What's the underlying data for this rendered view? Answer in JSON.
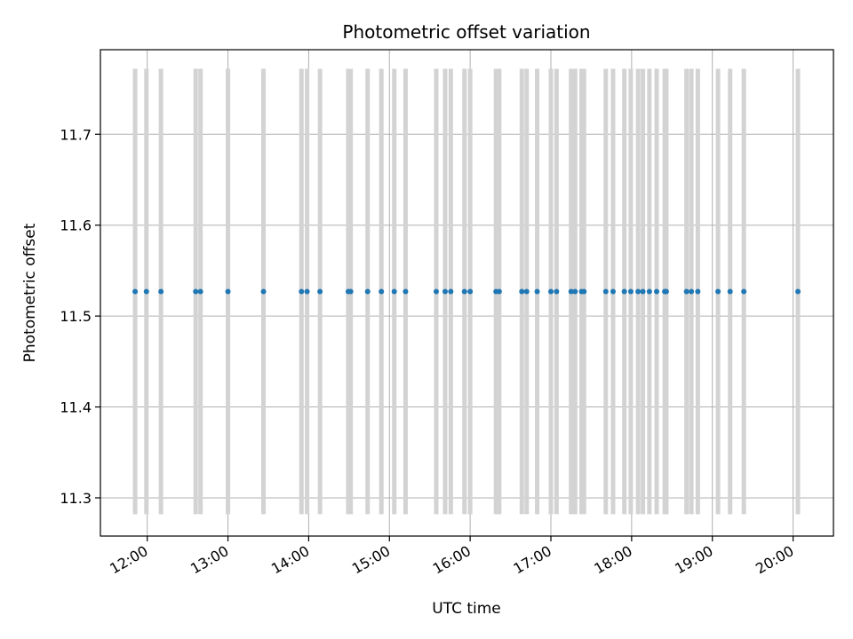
{
  "chart_data": {
    "type": "scatter",
    "title": "Photometric offset variation",
    "xlabel": "UTC time",
    "ylabel": "Photometric offset",
    "grid": true,
    "xlim_hours": [
      11.42,
      20.5
    ],
    "ylim": [
      11.258,
      11.793
    ],
    "y_ticks": [
      11.3,
      11.4,
      11.5,
      11.6,
      11.7
    ],
    "y_tick_labels": [
      "11.3",
      "11.4",
      "11.5",
      "11.6",
      "11.7"
    ],
    "x_ticks_hours": [
      12,
      13,
      14,
      15,
      16,
      17,
      18,
      19,
      20
    ],
    "x_tick_labels": [
      "12:00",
      "13:00",
      "14:00",
      "15:00",
      "16:00",
      "17:00",
      "18:00",
      "19:00",
      "20:00"
    ],
    "error_band": [
      11.282,
      11.772
    ],
    "colors": {
      "marker": "#1f77b4",
      "errorbar": "#d3d3d3",
      "grid": "#b0b0b0"
    },
    "series": [
      {
        "name": "Photometric offset",
        "x_hours": [
          11.85,
          11.99,
          12.17,
          12.6,
          12.66,
          13.0,
          13.44,
          13.91,
          13.98,
          14.14,
          14.49,
          14.52,
          14.73,
          14.9,
          15.06,
          15.2,
          15.58,
          15.69,
          15.76,
          15.93,
          16.0,
          16.32,
          16.36,
          16.64,
          16.7,
          16.83,
          17.0,
          17.07,
          17.25,
          17.3,
          17.38,
          17.41,
          17.68,
          17.77,
          17.91,
          17.99,
          18.08,
          18.14,
          18.22,
          18.31,
          18.41,
          18.43,
          18.68,
          18.74,
          18.82,
          19.07,
          19.22,
          19.39,
          20.06
        ],
        "y_values": [
          11.527,
          11.527,
          11.527,
          11.527,
          11.527,
          11.527,
          11.527,
          11.527,
          11.527,
          11.527,
          11.527,
          11.527,
          11.527,
          11.527,
          11.527,
          11.527,
          11.527,
          11.527,
          11.527,
          11.527,
          11.527,
          11.527,
          11.527,
          11.527,
          11.527,
          11.527,
          11.527,
          11.527,
          11.527,
          11.527,
          11.527,
          11.527,
          11.527,
          11.527,
          11.527,
          11.527,
          11.527,
          11.527,
          11.527,
          11.527,
          11.527,
          11.527,
          11.527,
          11.527,
          11.527,
          11.527,
          11.527,
          11.527,
          11.527
        ]
      }
    ]
  }
}
